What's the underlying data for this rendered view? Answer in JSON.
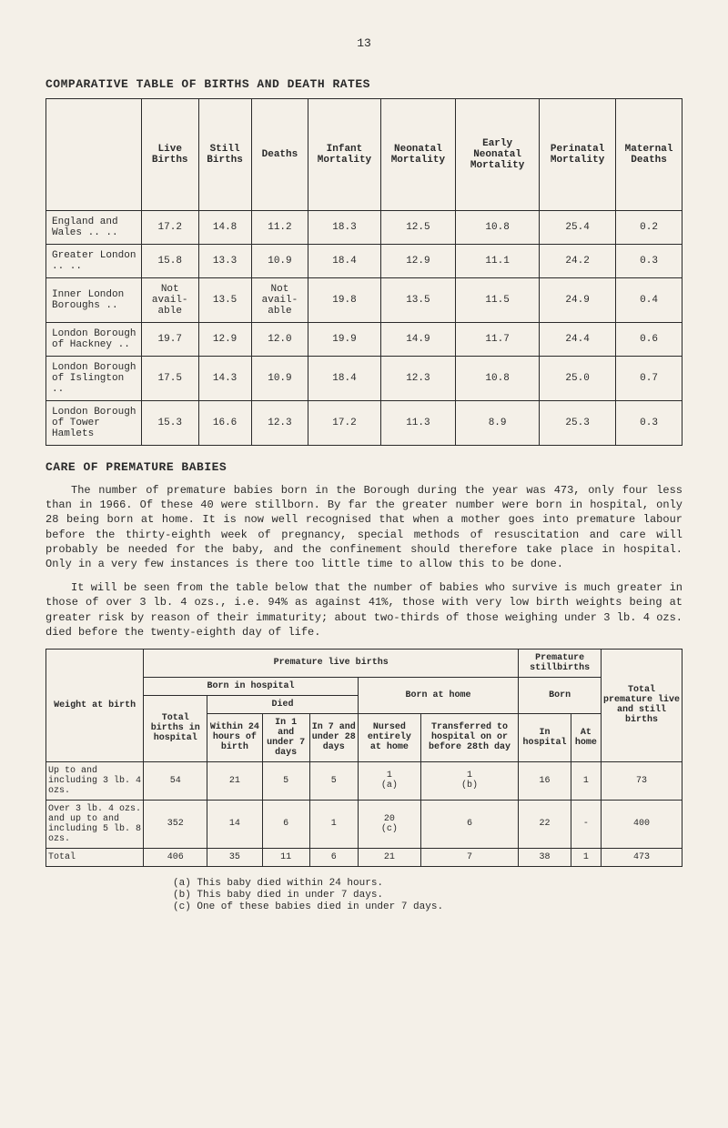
{
  "page_number": "13",
  "title1": "COMPARATIVE TABLE OF BIRTHS AND DEATH RATES",
  "table1": {
    "headers": [
      "",
      "Live Births",
      "Still Births",
      "Deaths",
      "Infant Mortality",
      "Neonatal Mortality",
      "Early Neonatal Mortality",
      "Perinatal Mortality",
      "Maternal Deaths"
    ],
    "rows": [
      [
        "England and Wales   ..   ..",
        "17.2",
        "14.8",
        "11.2",
        "18.3",
        "12.5",
        "10.8",
        "25.4",
        "0.2"
      ],
      [
        "Greater London   ..   ..",
        "15.8",
        "13.3",
        "10.9",
        "18.4",
        "12.9",
        "11.1",
        "24.2",
        "0.3"
      ],
      [
        "Inner London Boroughs   ..",
        "Not avail- able",
        "13.5",
        "Not avail- able",
        "19.8",
        "13.5",
        "11.5",
        "24.9",
        "0.4"
      ],
      [
        "London Borough of Hackney  ..",
        "19.7",
        "12.9",
        "12.0",
        "19.9",
        "14.9",
        "11.7",
        "24.4",
        "0.6"
      ],
      [
        "London Borough of Islington ..",
        "17.5",
        "14.3",
        "10.9",
        "18.4",
        "12.3",
        "10.8",
        "25.0",
        "0.7"
      ],
      [
        "London Borough of Tower Hamlets",
        "15.3",
        "16.6",
        "12.3",
        "17.2",
        "11.3",
        "8.9",
        "25.3",
        "0.3"
      ]
    ]
  },
  "title2": "CARE OF PREMATURE BABIES",
  "para1": "The number of premature babies born in the Borough during the year was 473, only four less than in 1966. Of these 40 were stillborn. By far the greater number were born in hospital, only 28 being born at home. It is now well recognised that when a mother goes into premature labour before the thirty-eighth week of pregnancy, special methods of resuscitation and care will probably be needed for the baby, and the confinement should therefore take place in hospital. Only in a very few instances is there too little time to allow this to be done.",
  "para2": "It will be seen from the table below that the number of babies who survive is much greater in those of over 3 lb. 4 ozs., i.e. 94% as against 41%, those with very low birth weights being at greater risk by reason of their immaturity; about two-thirds of those weighing under 3 lb. 4 ozs. died before the twenty-eighth day of life.",
  "table2": {
    "h_premlive": "Premature live births",
    "h_premstill": "Premature stillbirths",
    "h_totalprem": "Total premature live and still births",
    "h_bornhosp": "Born in hospital",
    "h_bornhome": "Born at home",
    "h_born": "Born",
    "h_died": "Died",
    "h_weight": "Weight at birth",
    "h_totalbirths": "Total births in hospital",
    "h_within24": "Within 24 hours of birth",
    "h_in1and7": "In 1 and under 7 days",
    "h_in7and28": "In 7 and under 28 days",
    "h_nursed": "Nursed entirely at home",
    "h_transferred": "Transferred to hospital on or before 28th day",
    "h_inhosp": "In hospital",
    "h_athome": "At home",
    "rows": [
      [
        "Up to and including 3 lb. 4 ozs.",
        "54",
        "21",
        "5",
        "5",
        "1\n(a)",
        "1\n(b)",
        "16",
        "1",
        "73"
      ],
      [
        "Over 3 lb. 4 ozs. and up to and including 5 lb. 8 ozs.",
        "352",
        "14",
        "6",
        "1",
        "20\n(c)",
        "6",
        "22",
        "-",
        "400"
      ],
      [
        "Total",
        "406",
        "35",
        "11",
        "6",
        "21",
        "7",
        "38",
        "1",
        "473"
      ]
    ]
  },
  "footnotes": {
    "a": "(a) This baby died within 24 hours.",
    "b": "(b) This baby died in under 7 days.",
    "c": "(c) One of these babies died in under 7 days."
  }
}
